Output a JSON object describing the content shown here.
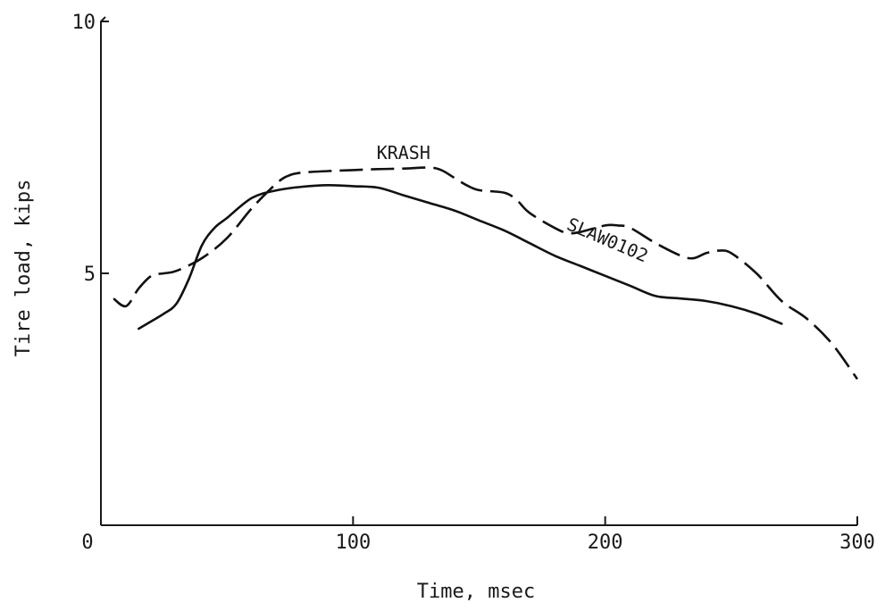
{
  "chart_data": {
    "type": "line",
    "title": "",
    "xlabel": "Time, msec",
    "ylabel": "Tire load, kips",
    "xlim": [
      0,
      300
    ],
    "ylim": [
      0,
      10
    ],
    "x_ticks": [
      0,
      100,
      200,
      300
    ],
    "x_tick_labels": [
      "0",
      "100",
      "200",
      "300"
    ],
    "y_ticks": [
      5,
      10
    ],
    "y_tick_labels": [
      "5",
      "10"
    ],
    "grid": false,
    "legend": "none",
    "series": [
      {
        "name": "KRASH",
        "style": "dashed",
        "x": [
          5,
          10,
          15,
          20,
          25,
          30,
          40,
          50,
          60,
          70,
          75,
          80,
          90,
          100,
          110,
          120,
          130,
          135,
          140,
          145,
          150,
          160,
          165,
          170,
          180,
          185,
          190,
          200,
          205,
          210,
          220,
          230,
          235,
          240,
          245,
          250,
          260,
          270,
          280,
          290,
          300
        ],
        "y": [
          4.5,
          4.35,
          4.7,
          4.95,
          5.0,
          5.05,
          5.3,
          5.7,
          6.3,
          6.8,
          6.95,
          7.0,
          7.03,
          7.05,
          7.07,
          7.08,
          7.1,
          7.05,
          6.9,
          6.75,
          6.65,
          6.6,
          6.45,
          6.2,
          5.9,
          5.8,
          5.82,
          5.95,
          5.95,
          5.9,
          5.6,
          5.35,
          5.3,
          5.4,
          5.45,
          5.4,
          5.0,
          4.45,
          4.1,
          3.6,
          2.9
        ]
      },
      {
        "name": "SLAW0102",
        "style": "solid",
        "x": [
          15,
          20,
          25,
          30,
          35,
          40,
          45,
          50,
          60,
          70,
          80,
          90,
          100,
          110,
          120,
          130,
          140,
          150,
          160,
          170,
          180,
          190,
          200,
          210,
          220,
          230,
          240,
          250,
          260,
          270
        ],
        "y": [
          3.9,
          4.05,
          4.2,
          4.4,
          4.9,
          5.55,
          5.9,
          6.1,
          6.5,
          6.65,
          6.72,
          6.75,
          6.73,
          6.7,
          6.55,
          6.4,
          6.25,
          6.05,
          5.85,
          5.6,
          5.35,
          5.15,
          4.95,
          4.75,
          4.55,
          4.5,
          4.45,
          4.35,
          4.2,
          4.0
        ]
      }
    ]
  }
}
